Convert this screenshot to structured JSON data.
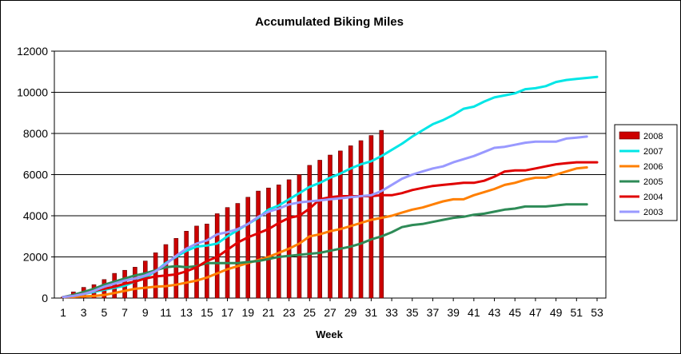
{
  "chart_data": {
    "type": "bar+line",
    "title": "Accumulated Biking Miles",
    "xlabel": "Week",
    "ylabel": "",
    "ylim": [
      0,
      12000
    ],
    "yticks": [
      0,
      2000,
      4000,
      6000,
      8000,
      10000,
      12000
    ],
    "xlim": [
      1,
      53
    ],
    "xticks": [
      1,
      3,
      5,
      7,
      9,
      11,
      13,
      15,
      17,
      19,
      21,
      23,
      25,
      27,
      29,
      31,
      33,
      35,
      37,
      39,
      41,
      43,
      45,
      47,
      49,
      51,
      53
    ],
    "grid": true,
    "legend_position": "right",
    "series": [
      {
        "name": "2008",
        "kind": "bar",
        "color": "#cc0000",
        "x": [
          1,
          2,
          3,
          4,
          5,
          6,
          7,
          8,
          9,
          10,
          11,
          12,
          13,
          14,
          15,
          16,
          17,
          18,
          19,
          20,
          21,
          22,
          23,
          24,
          25,
          26,
          27,
          28,
          29,
          30,
          31,
          32
        ],
        "values": [
          50,
          300,
          520,
          650,
          900,
          1200,
          1350,
          1500,
          1800,
          2200,
          2600,
          2900,
          3250,
          3500,
          3600,
          4100,
          4400,
          4600,
          4900,
          5200,
          5350,
          5500,
          5750,
          6000,
          6450,
          6700,
          6950,
          7150,
          7400,
          7650,
          7900,
          8150
        ]
      },
      {
        "name": "2007",
        "kind": "line",
        "color": "#00e6e6",
        "x": [
          1,
          2,
          3,
          4,
          5,
          6,
          7,
          8,
          9,
          10,
          11,
          12,
          13,
          14,
          15,
          16,
          17,
          18,
          19,
          20,
          21,
          22,
          23,
          24,
          25,
          26,
          27,
          28,
          29,
          30,
          31,
          32,
          33,
          34,
          35,
          36,
          37,
          38,
          39,
          40,
          41,
          42,
          43,
          44,
          45,
          46,
          47,
          48,
          49,
          50,
          51,
          52,
          53
        ],
        "values": [
          50,
          100,
          200,
          300,
          400,
          500,
          600,
          800,
          1000,
          1300,
          1700,
          2000,
          2300,
          2500,
          2550,
          2650,
          3000,
          3300,
          3600,
          3900,
          4300,
          4500,
          4800,
          5100,
          5400,
          5600,
          5850,
          6050,
          6300,
          6500,
          6650,
          6900,
          7200,
          7500,
          7850,
          8150,
          8450,
          8650,
          8900,
          9200,
          9300,
          9550,
          9750,
          9850,
          9950,
          10150,
          10200,
          10300,
          10500,
          10600,
          10650,
          10700,
          10750
        ]
      },
      {
        "name": "2006",
        "kind": "line",
        "color": "#ff7f00",
        "x": [
          1,
          2,
          3,
          4,
          5,
          6,
          7,
          8,
          9,
          10,
          11,
          12,
          13,
          14,
          15,
          16,
          17,
          18,
          19,
          20,
          21,
          22,
          23,
          24,
          25,
          26,
          27,
          28,
          29,
          30,
          31,
          32,
          33,
          34,
          35,
          36,
          37,
          38,
          39,
          40,
          41,
          42,
          43,
          44,
          45,
          46,
          47,
          48,
          49,
          50,
          51,
          52
        ],
        "values": [
          50,
          60,
          80,
          100,
          150,
          250,
          350,
          450,
          500,
          550,
          580,
          650,
          750,
          850,
          1000,
          1200,
          1400,
          1550,
          1700,
          1850,
          2000,
          2200,
          2400,
          2650,
          3000,
          3100,
          3250,
          3350,
          3500,
          3650,
          3800,
          3900,
          4000,
          4150,
          4300,
          4400,
          4550,
          4700,
          4800,
          4800,
          5000,
          5150,
          5300,
          5500,
          5600,
          5750,
          5850,
          5850,
          6000,
          6150,
          6300,
          6350
        ]
      },
      {
        "name": "2005",
        "kind": "line",
        "color": "#2e8b57",
        "x": [
          1,
          2,
          3,
          4,
          5,
          6,
          7,
          8,
          9,
          10,
          11,
          12,
          13,
          14,
          15,
          16,
          17,
          18,
          19,
          20,
          21,
          22,
          23,
          24,
          25,
          26,
          27,
          28,
          29,
          30,
          31,
          32,
          33,
          34,
          35,
          36,
          37,
          38,
          39,
          40,
          41,
          42,
          43,
          44,
          45,
          46,
          47,
          48,
          49,
          50,
          51,
          52
        ],
        "values": [
          50,
          150,
          300,
          450,
          650,
          800,
          950,
          1100,
          1200,
          1350,
          1500,
          1550,
          1500,
          1550,
          1700,
          1700,
          1700,
          1700,
          1750,
          1800,
          1900,
          2000,
          2050,
          2100,
          2150,
          2200,
          2300,
          2400,
          2500,
          2650,
          2850,
          3000,
          3200,
          3450,
          3550,
          3600,
          3700,
          3800,
          3900,
          3950,
          4050,
          4100,
          4200,
          4300,
          4350,
          4450,
          4450,
          4450,
          4500,
          4550,
          4550,
          4550
        ]
      },
      {
        "name": "2004",
        "kind": "line",
        "color": "#e00000",
        "x": [
          1,
          2,
          3,
          4,
          5,
          6,
          7,
          8,
          9,
          10,
          11,
          12,
          13,
          14,
          15,
          16,
          17,
          18,
          19,
          20,
          21,
          22,
          23,
          24,
          25,
          26,
          27,
          28,
          29,
          30,
          31,
          32,
          33,
          34,
          35,
          36,
          37,
          38,
          39,
          40,
          41,
          42,
          43,
          44,
          45,
          46,
          47,
          48,
          49,
          50,
          51,
          52,
          53
        ],
        "values": [
          50,
          100,
          200,
          350,
          450,
          550,
          700,
          800,
          950,
          1050,
          1100,
          1150,
          1300,
          1500,
          1800,
          2000,
          2350,
          2700,
          2950,
          3150,
          3350,
          3650,
          3900,
          4000,
          4350,
          4800,
          4900,
          4950,
          4950,
          4950,
          4950,
          5000,
          5000,
          5100,
          5250,
          5350,
          5450,
          5500,
          5550,
          5600,
          5600,
          5700,
          5900,
          6150,
          6200,
          6200,
          6300,
          6400,
          6500,
          6550,
          6600,
          6600,
          6600
        ]
      },
      {
        "name": "2003",
        "kind": "line",
        "color": "#9999ff",
        "x": [
          1,
          2,
          3,
          4,
          5,
          6,
          7,
          8,
          9,
          10,
          11,
          12,
          13,
          14,
          15,
          16,
          17,
          18,
          19,
          20,
          21,
          22,
          23,
          24,
          25,
          26,
          27,
          28,
          29,
          30,
          31,
          32,
          33,
          34,
          35,
          36,
          37,
          38,
          39,
          40,
          41,
          42,
          43,
          44,
          45,
          46,
          47,
          48,
          49,
          50,
          51,
          52
        ],
        "values": [
          50,
          100,
          200,
          350,
          550,
          700,
          850,
          950,
          1100,
          1300,
          1650,
          2050,
          2400,
          2650,
          2800,
          3100,
          3200,
          3350,
          3600,
          3950,
          4200,
          4350,
          4550,
          4650,
          4700,
          4750,
          4800,
          4850,
          4900,
          4950,
          5000,
          5200,
          5500,
          5800,
          6000,
          6150,
          6300,
          6400,
          6600,
          6750,
          6900,
          7100,
          7300,
          7350,
          7450,
          7550,
          7600,
          7600,
          7600,
          7750,
          7800,
          7850
        ]
      }
    ]
  }
}
